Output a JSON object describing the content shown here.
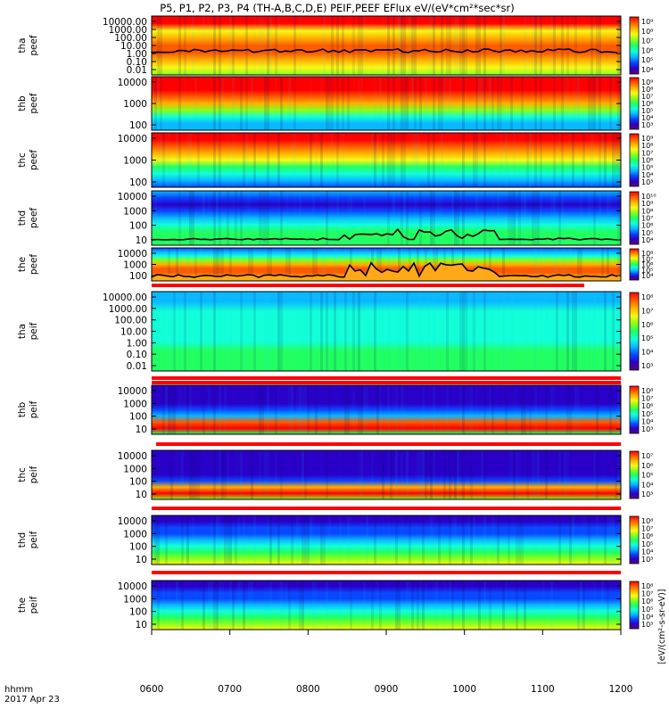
{
  "title": "P5, P1, P2, P3, P4 (TH-A,B,C,D,E) PEIF,PEEF EFlux eV/(eV*cm²*sec*sr)",
  "footer": {
    "time_label": "hhmm",
    "date_label": "2017 Apr 23"
  },
  "colorbar_unit_label": "[eV/(cm²-s-sr-eV)]",
  "colors": {
    "spectrogram_scale": [
      "#60007a",
      "#2a00c8",
      "#0a48ff",
      "#0ab8ff",
      "#12ffd8",
      "#22ff60",
      "#88ff18",
      "#f8f818",
      "#ffb000",
      "#ff5a00",
      "#ff0000"
    ],
    "flag_bar": "#ff0000",
    "overlay_line": "#000000",
    "overlay_fill": "#ffa818"
  },
  "chart_data": {
    "type": "heatmap",
    "xlabel": "",
    "x_tick_labels": [
      "0600",
      "0700",
      "0800",
      "0900",
      "1000",
      "1100",
      "1200"
    ],
    "x_range": [
      "06:00",
      "12:00"
    ],
    "panels": [
      {
        "probe_label": "tha",
        "product_label": "peef",
        "y_scale": "log",
        "y_tick_labels": [
          "10000.00",
          "1000.00",
          "100.00",
          "10.00",
          "1.00",
          "0.10",
          "0.01"
        ],
        "y_range": [
          0.01,
          30000
        ],
        "colorbar_ticks": [
          "10⁹",
          "10⁸",
          "10⁷",
          "10⁶",
          "10⁵",
          "10⁴"
        ],
        "profile": [
          6,
          7,
          8,
          9,
          9,
          8,
          7,
          10,
          10
        ],
        "overlay": "potential-line"
      },
      {
        "probe_label": "thb",
        "product_label": "peef",
        "y_scale": "log",
        "y_tick_labels": [
          "10000",
          "1000",
          "100"
        ],
        "y_range": [
          20,
          30000
        ],
        "colorbar_ticks": [
          "10⁹",
          "10⁸",
          "10⁷",
          "10⁶",
          "10⁵",
          "10⁴",
          "10³"
        ],
        "profile": [
          3,
          3,
          4,
          6,
          8,
          9,
          10,
          10,
          10
        ],
        "overlay": "none"
      },
      {
        "probe_label": "thc",
        "product_label": "peef",
        "y_scale": "log",
        "y_tick_labels": [
          "10000",
          "1000",
          "100"
        ],
        "y_range": [
          20,
          30000
        ],
        "colorbar_ticks": [
          "10⁹",
          "10⁸",
          "10⁷",
          "10⁶",
          "10⁵",
          "10⁴",
          "10³"
        ],
        "profile": [
          2,
          3,
          4,
          5,
          7,
          8,
          9,
          10,
          10
        ],
        "overlay": "none"
      },
      {
        "probe_label": "thd",
        "product_label": "peef",
        "y_scale": "log",
        "y_tick_labels": [
          "10000",
          "1000",
          "100",
          "10"
        ],
        "y_range": [
          5,
          30000
        ],
        "colorbar_ticks": [
          "10¹⁰",
          "10⁹",
          "10⁸",
          "10⁷",
          "10⁶",
          "10⁵",
          "10⁴"
        ],
        "profile": [
          5,
          5,
          5,
          4,
          3,
          2,
          1,
          2,
          3
        ],
        "overlay": "potential-line"
      },
      {
        "probe_label": "the",
        "product_label": "peef",
        "y_scale": "log",
        "y_tick_labels": [
          "10000",
          "1000",
          "100"
        ],
        "y_range": [
          10,
          30000
        ],
        "colorbar_ticks": [
          "10⁸",
          "10⁷",
          "10⁶",
          "10⁵",
          "10⁴"
        ],
        "profile": [
          7,
          8,
          9,
          9,
          8,
          6,
          4,
          3,
          2
        ],
        "overlay": "potential-fill"
      },
      {
        "probe_label": "tha",
        "product_label": "peif",
        "y_scale": "log",
        "y_tick_labels": [
          "10000.00",
          "1000.00",
          "100.00",
          "10.00",
          "1.00",
          "0.10",
          "0.01"
        ],
        "y_range": [
          0.01,
          30000
        ],
        "colorbar_ticks": [
          "10⁸",
          "10⁷",
          "10⁶",
          "10⁵",
          "10⁴",
          "10³"
        ],
        "profile": [
          5,
          5,
          5,
          4,
          4,
          4,
          4,
          3,
          3
        ],
        "overlay": "none"
      },
      {
        "probe_label": "thb",
        "product_label": "peif",
        "y_scale": "log",
        "y_tick_labels": [
          "10000",
          "1000",
          "100",
          "10"
        ],
        "y_range": [
          5,
          30000
        ],
        "colorbar_ticks": [
          "10⁸",
          "10⁷",
          "10⁶",
          "10⁵",
          "10⁴",
          "10³"
        ],
        "profile": [
          5,
          10,
          9,
          3,
          2,
          1,
          1,
          1,
          1
        ],
        "overlay": "none"
      },
      {
        "probe_label": "thc",
        "product_label": "peif",
        "y_scale": "log",
        "y_tick_labels": [
          "10000",
          "1000",
          "100",
          "10"
        ],
        "y_range": [
          5,
          30000
        ],
        "colorbar_ticks": [
          "10⁷",
          "10⁶",
          "10⁵",
          "10⁴",
          "10³"
        ],
        "profile": [
          6,
          10,
          8,
          2,
          1,
          1,
          1,
          1,
          1
        ],
        "overlay": "none"
      },
      {
        "probe_label": "thd",
        "product_label": "peif",
        "y_scale": "log",
        "y_tick_labels": [
          "10000",
          "1000",
          "100",
          "10"
        ],
        "y_range": [
          5,
          30000
        ],
        "colorbar_ticks": [
          "10⁸",
          "10⁷",
          "10⁶",
          "10⁵",
          "10⁴",
          "10³"
        ],
        "profile": [
          7,
          6,
          5,
          4,
          3,
          2,
          2,
          1,
          1
        ],
        "overlay": "none"
      },
      {
        "probe_label": "the",
        "product_label": "peif",
        "y_scale": "log",
        "y_tick_labels": [
          "10000",
          "1000",
          "100",
          "10"
        ],
        "y_range": [
          5,
          30000
        ],
        "colorbar_ticks": [
          "10⁸",
          "10⁷",
          "10⁶",
          "10⁵",
          "10⁴",
          "10³"
        ],
        "profile": [
          7,
          6,
          5,
          4,
          3,
          2,
          2,
          1,
          1
        ],
        "overlay": "none"
      }
    ]
  }
}
